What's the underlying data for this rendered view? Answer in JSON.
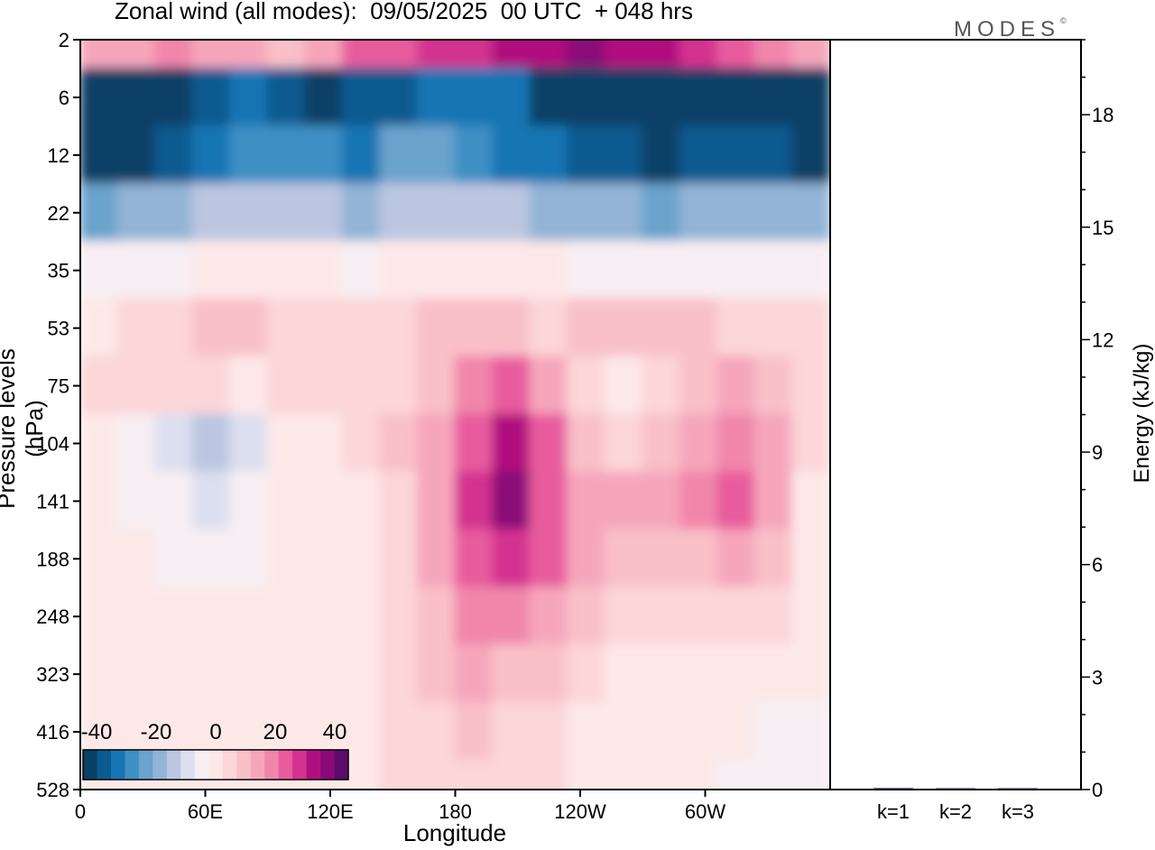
{
  "title": "Zonal wind (all modes):  09/05/2025  00 UTC  + 048 hrs",
  "logo": "MODES",
  "logo_mark": "©",
  "colors": {
    "scale": [
      "#0a3f66",
      "#0b5a90",
      "#1775b3",
      "#3d8fc4",
      "#6aa3cc",
      "#93b4d6",
      "#bcc6e0",
      "#dcdff0",
      "#f7eef3",
      "#fde8e8",
      "#fcd6d8",
      "#f9c0c8",
      "#f6a6bb",
      "#f186ab",
      "#e85c9e",
      "#d43290",
      "#b0107e",
      "#8a0a78",
      "#5e0a6c"
    ]
  },
  "chart_data": [
    {
      "type": "heatmap",
      "title": "Zonal wind (all modes):  09/05/2025  00 UTC  + 048 hrs",
      "xlabel": "Longitude",
      "ylabel": "Pressure levels (hPa)",
      "x_ticks": [
        "0",
        "60E",
        "120E",
        "180",
        "120W",
        "60W"
      ],
      "y_ticks": [
        "2",
        "6",
        "12",
        "22",
        "35",
        "53",
        "75",
        "104",
        "141",
        "188",
        "248",
        "323",
        "416",
        "528"
      ],
      "colorbar_ticks": [
        "-40",
        "-20",
        "0",
        "20",
        "40"
      ],
      "colorbar_range": [
        -40,
        40
      ],
      "x_range": [
        0,
        360
      ],
      "rows": [
        {
          "level": "2",
          "u": [
            12,
            14,
            16,
            15,
            12,
            10,
            14,
            20,
            24,
            26,
            28,
            30,
            32,
            34,
            33,
            30,
            26,
            20,
            16,
            14
          ]
        },
        {
          "level": "6",
          "u": [
            -42,
            -40,
            -38,
            -35,
            -33,
            -35,
            -38,
            -36,
            -34,
            -32,
            -30,
            -32,
            -38,
            -40,
            -42,
            -40,
            -38,
            -40,
            -42,
            -44
          ]
        },
        {
          "level": "12",
          "u": [
            -40,
            -38,
            -34,
            -30,
            -27,
            -26,
            -28,
            -30,
            -24,
            -22,
            -26,
            -30,
            -32,
            -34,
            -36,
            -38,
            -36,
            -34,
            -36,
            -40
          ]
        },
        {
          "level": "22",
          "u": [
            -22,
            -20,
            -16,
            -14,
            -12,
            -12,
            -14,
            -16,
            -14,
            -12,
            -12,
            -14,
            -16,
            -18,
            -20,
            -22,
            -20,
            -18,
            -18,
            -20
          ]
        },
        {
          "level": "35",
          "u": [
            -6,
            -4,
            -3,
            -2,
            -2,
            -1,
            -2,
            -3,
            -2,
            -1,
            -1,
            -2,
            -2,
            -3,
            -3,
            -4,
            -4,
            -3,
            -3,
            -4
          ]
        },
        {
          "level": "53",
          "u": [
            2,
            4,
            6,
            8,
            7,
            6,
            5,
            4,
            6,
            8,
            10,
            8,
            6,
            7,
            8,
            9,
            8,
            6,
            4,
            3
          ]
        },
        {
          "level": "75",
          "u": [
            3,
            5,
            6,
            4,
            2,
            3,
            5,
            4,
            6,
            10,
            16,
            20,
            14,
            6,
            2,
            4,
            10,
            12,
            8,
            4
          ]
        },
        {
          "level": "104",
          "u": [
            -2,
            -6,
            -10,
            -14,
            -8,
            -2,
            2,
            4,
            8,
            12,
            20,
            30,
            22,
            10,
            6,
            8,
            14,
            18,
            12,
            4
          ]
        },
        {
          "level": "141",
          "u": [
            -2,
            -4,
            -6,
            -8,
            -6,
            -2,
            1,
            2,
            6,
            14,
            26,
            34,
            24,
            14,
            12,
            12,
            16,
            20,
            14,
            2
          ]
        },
        {
          "level": "188",
          "u": [
            -1,
            -2,
            -3,
            -4,
            -3,
            -1,
            1,
            2,
            4,
            12,
            22,
            26,
            20,
            12,
            8,
            8,
            10,
            12,
            8,
            2
          ]
        },
        {
          "level": "248",
          "u": [
            0,
            -1,
            -1,
            -2,
            -1,
            0,
            1,
            1,
            3,
            10,
            18,
            18,
            14,
            8,
            4,
            4,
            4,
            4,
            3,
            1
          ]
        },
        {
          "level": "323",
          "u": [
            0,
            0,
            -1,
            -1,
            0,
            0,
            0,
            1,
            4,
            8,
            12,
            10,
            8,
            4,
            2,
            1,
            1,
            0,
            -1,
            -2
          ]
        },
        {
          "level": "416",
          "u": [
            -1,
            -1,
            -2,
            -1,
            0,
            0,
            0,
            1,
            4,
            6,
            8,
            6,
            4,
            2,
            1,
            0,
            -1,
            -2,
            -3,
            -3
          ]
        },
        {
          "level": "528",
          "u": [
            -1,
            -2,
            -2,
            -1,
            0,
            0,
            0,
            1,
            3,
            5,
            6,
            5,
            3,
            1,
            0,
            -1,
            -2,
            -3,
            -3,
            -3
          ]
        }
      ]
    },
    {
      "type": "bar",
      "ylabel": "Energy (kJ/kg)",
      "categories": [
        "k=1",
        "k=2",
        "k=3"
      ],
      "values": [
        0.04,
        0.01,
        0.01
      ],
      "ylim": [
        0,
        20
      ],
      "y_ticks": [
        "0",
        "3",
        "6",
        "9",
        "12",
        "15",
        "18"
      ]
    }
  ]
}
